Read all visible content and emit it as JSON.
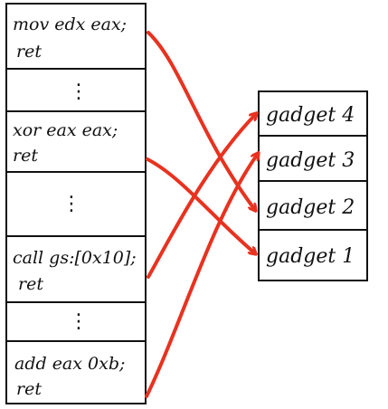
{
  "stack": {
    "blocks": [
      {
        "line1": "mov edx eax;",
        "line2": "ret"
      },
      {
        "dots": "⋮"
      },
      {
        "line1": "xor eax eax;",
        "line2": "ret"
      },
      {
        "dots": "⋮"
      },
      {
        "line1": "call gs:[0x10];",
        "line2": "ret"
      },
      {
        "dots": "⋮"
      },
      {
        "line1": "add eax 0xb;",
        "line2": "ret"
      }
    ]
  },
  "gadgets": [
    {
      "label": "gadget 4"
    },
    {
      "label": "gadget 3"
    },
    {
      "label": "gadget 2"
    },
    {
      "label": "gadget 1"
    }
  ],
  "colors": {
    "outline": "#111111",
    "arrow": "#e8321f"
  },
  "arrow_links": [
    {
      "from": "mov edx eax; ret",
      "to": "gadget 2"
    },
    {
      "from": "xor eax eax; ret",
      "to": "gadget 1"
    },
    {
      "from": "call gs:[0x10]; ret",
      "to": "gadget 4"
    },
    {
      "from": "add eax 0xb; ret",
      "to": "gadget 3"
    }
  ]
}
